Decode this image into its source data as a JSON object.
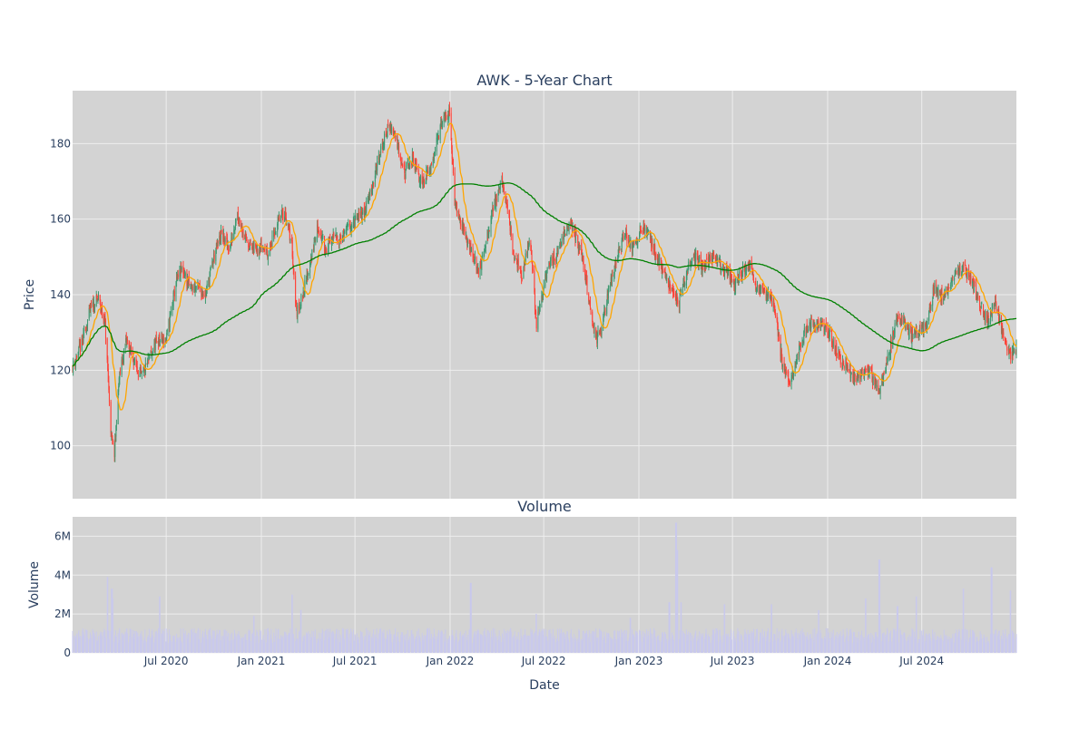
{
  "chart_data": {
    "type": "candlestick",
    "title": "AWK - 5-Year Chart",
    "panels": {
      "price": {
        "ylabel": "Price",
        "ylim": [
          86,
          194
        ],
        "yticks": [
          100,
          120,
          140,
          160,
          180
        ],
        "ytick_labels": [
          "100",
          "120",
          "140",
          "160",
          "180"
        ],
        "grid": true
      },
      "volume": {
        "title": "Volume",
        "ylabel": "Volume",
        "xlabel": "Date",
        "ylim": [
          0,
          7000000
        ],
        "yticks": [
          0,
          2000000,
          4000000,
          6000000
        ],
        "ytick_labels": [
          "0",
          "2M",
          "4M",
          "6M"
        ],
        "grid": true
      }
    },
    "x_range": [
      "2020-01-02",
      "2024-12-31"
    ],
    "x_ticks": [
      {
        "date": "2020-07-01",
        "label": "Jul 2020"
      },
      {
        "date": "2021-01-01",
        "label": "Jan 2021"
      },
      {
        "date": "2021-07-01",
        "label": "Jul 2021"
      },
      {
        "date": "2022-01-01",
        "label": "Jan 2022"
      },
      {
        "date": "2022-07-01",
        "label": "Jul 2022"
      },
      {
        "date": "2023-01-01",
        "label": "Jan 2023"
      },
      {
        "date": "2023-07-01",
        "label": "Jul 2023"
      },
      {
        "date": "2024-01-01",
        "label": "Jan 2024"
      },
      {
        "date": "2024-07-01",
        "label": "Jul 2024"
      }
    ],
    "close_anchors": [
      [
        "2020-01-02",
        121
      ],
      [
        "2020-01-20",
        127
      ],
      [
        "2020-02-05",
        136
      ],
      [
        "2020-02-21",
        139
      ],
      [
        "2020-03-05",
        132
      ],
      [
        "2020-03-17",
        102
      ],
      [
        "2020-03-23",
        98
      ],
      [
        "2020-04-01",
        118
      ],
      [
        "2020-04-15",
        128
      ],
      [
        "2020-05-01",
        122
      ],
      [
        "2020-05-15",
        118
      ],
      [
        "2020-06-01",
        124
      ],
      [
        "2020-06-15",
        128
      ],
      [
        "2020-07-01",
        128
      ],
      [
        "2020-07-20",
        143
      ],
      [
        "2020-08-01",
        147
      ],
      [
        "2020-08-15",
        142
      ],
      [
        "2020-09-01",
        142
      ],
      [
        "2020-09-15",
        140
      ],
      [
        "2020-10-01",
        150
      ],
      [
        "2020-10-15",
        156
      ],
      [
        "2020-11-01",
        152
      ],
      [
        "2020-11-15",
        162
      ],
      [
        "2020-12-01",
        155
      ],
      [
        "2020-12-15",
        152
      ],
      [
        "2021-01-01",
        153
      ],
      [
        "2021-01-15",
        151
      ],
      [
        "2021-02-01",
        159
      ],
      [
        "2021-02-15",
        162
      ],
      [
        "2021-03-01",
        153
      ],
      [
        "2021-03-10",
        135
      ],
      [
        "2021-03-20",
        139
      ],
      [
        "2021-04-05",
        148
      ],
      [
        "2021-04-20",
        158
      ],
      [
        "2021-05-05",
        152
      ],
      [
        "2021-05-20",
        155
      ],
      [
        "2021-06-05",
        155
      ],
      [
        "2021-06-20",
        158
      ],
      [
        "2021-07-05",
        160
      ],
      [
        "2021-07-20",
        162
      ],
      [
        "2021-08-05",
        170
      ],
      [
        "2021-08-20",
        178
      ],
      [
        "2021-09-05",
        185
      ],
      [
        "2021-09-20",
        181
      ],
      [
        "2021-10-05",
        172
      ],
      [
        "2021-10-20",
        176
      ],
      [
        "2021-11-05",
        170
      ],
      [
        "2021-11-20",
        172
      ],
      [
        "2021-12-05",
        180
      ],
      [
        "2021-12-20",
        187
      ],
      [
        "2021-12-31",
        188
      ],
      [
        "2022-01-10",
        165
      ],
      [
        "2022-01-25",
        158
      ],
      [
        "2022-02-10",
        152
      ],
      [
        "2022-02-25",
        146
      ],
      [
        "2022-03-10",
        152
      ],
      [
        "2022-03-25",
        163
      ],
      [
        "2022-04-10",
        170
      ],
      [
        "2022-04-20",
        165
      ],
      [
        "2022-05-05",
        150
      ],
      [
        "2022-05-20",
        145
      ],
      [
        "2022-06-05",
        155
      ],
      [
        "2022-06-17",
        132
      ],
      [
        "2022-06-25",
        138
      ],
      [
        "2022-07-10",
        148
      ],
      [
        "2022-07-25",
        150
      ],
      [
        "2022-08-10",
        157
      ],
      [
        "2022-08-25",
        158
      ],
      [
        "2022-09-10",
        152
      ],
      [
        "2022-09-25",
        140
      ],
      [
        "2022-10-10",
        128
      ],
      [
        "2022-10-20",
        130
      ],
      [
        "2022-11-05",
        142
      ],
      [
        "2022-11-20",
        150
      ],
      [
        "2022-12-05",
        157
      ],
      [
        "2022-12-20",
        152
      ],
      [
        "2023-01-05",
        158
      ],
      [
        "2023-01-20",
        156
      ],
      [
        "2023-02-05",
        150
      ],
      [
        "2023-02-20",
        145
      ],
      [
        "2023-03-05",
        141
      ],
      [
        "2023-03-20",
        138
      ],
      [
        "2023-04-05",
        147
      ],
      [
        "2023-04-20",
        150
      ],
      [
        "2023-05-05",
        147
      ],
      [
        "2023-05-20",
        150
      ],
      [
        "2023-06-05",
        148
      ],
      [
        "2023-06-20",
        146
      ],
      [
        "2023-07-05",
        142
      ],
      [
        "2023-07-20",
        146
      ],
      [
        "2023-08-05",
        148
      ],
      [
        "2023-08-15",
        142
      ],
      [
        "2023-09-05",
        140
      ],
      [
        "2023-09-20",
        137
      ],
      [
        "2023-10-05",
        122
      ],
      [
        "2023-10-20",
        116
      ],
      [
        "2023-11-05",
        125
      ],
      [
        "2023-11-20",
        131
      ],
      [
        "2023-12-05",
        133
      ],
      [
        "2023-12-20",
        132
      ],
      [
        "2024-01-05",
        130
      ],
      [
        "2024-01-20",
        124
      ],
      [
        "2024-02-05",
        121
      ],
      [
        "2024-02-20",
        118
      ],
      [
        "2024-03-05",
        119
      ],
      [
        "2024-03-20",
        120
      ],
      [
        "2024-04-10",
        115
      ],
      [
        "2024-04-25",
        122
      ],
      [
        "2024-05-10",
        132
      ],
      [
        "2024-05-25",
        134
      ],
      [
        "2024-06-10",
        129
      ],
      [
        "2024-06-25",
        130
      ],
      [
        "2024-07-10",
        132
      ],
      [
        "2024-07-25",
        142
      ],
      [
        "2024-08-10",
        140
      ],
      [
        "2024-08-25",
        142
      ],
      [
        "2024-09-05",
        146
      ],
      [
        "2024-09-20",
        147
      ],
      [
        "2024-10-05",
        144
      ],
      [
        "2024-10-20",
        138
      ],
      [
        "2024-11-05",
        133
      ],
      [
        "2024-11-20",
        138
      ],
      [
        "2024-12-05",
        130
      ],
      [
        "2024-12-20",
        124
      ],
      [
        "2024-12-31",
        125
      ]
    ],
    "volume_typical": 850000,
    "volume_peaks": [
      [
        "2020-03-09",
        3900000
      ],
      [
        "2020-03-18",
        3300000
      ],
      [
        "2020-03-20",
        2800000
      ],
      [
        "2020-06-19",
        2900000
      ],
      [
        "2020-12-18",
        1900000
      ],
      [
        "2021-03-01",
        3000000
      ],
      [
        "2021-03-19",
        2200000
      ],
      [
        "2022-02-10",
        3600000
      ],
      [
        "2022-06-17",
        2000000
      ],
      [
        "2022-12-16",
        1800000
      ],
      [
        "2023-03-01",
        2600000
      ],
      [
        "2023-03-14",
        6700000
      ],
      [
        "2023-03-17",
        5300000
      ],
      [
        "2023-03-24",
        2600000
      ],
      [
        "2023-06-16",
        2500000
      ],
      [
        "2023-09-15",
        2500000
      ],
      [
        "2023-12-15",
        2200000
      ],
      [
        "2024-03-15",
        2800000
      ],
      [
        "2024-04-10",
        4800000
      ],
      [
        "2024-05-15",
        2400000
      ],
      [
        "2024-06-21",
        2900000
      ],
      [
        "2024-09-20",
        3300000
      ],
      [
        "2024-11-13",
        4400000
      ],
      [
        "2024-12-20",
        3200000
      ]
    ],
    "colors": {
      "increasing": "#3d9970",
      "decreasing": "#ff4136",
      "ma_short": "#ffa500",
      "ma_long": "#008000",
      "volume": "#c9c9ec",
      "plot_bg": "#d3d3d3",
      "grid": "#eeeeee",
      "text": "#2a3f5f"
    }
  }
}
